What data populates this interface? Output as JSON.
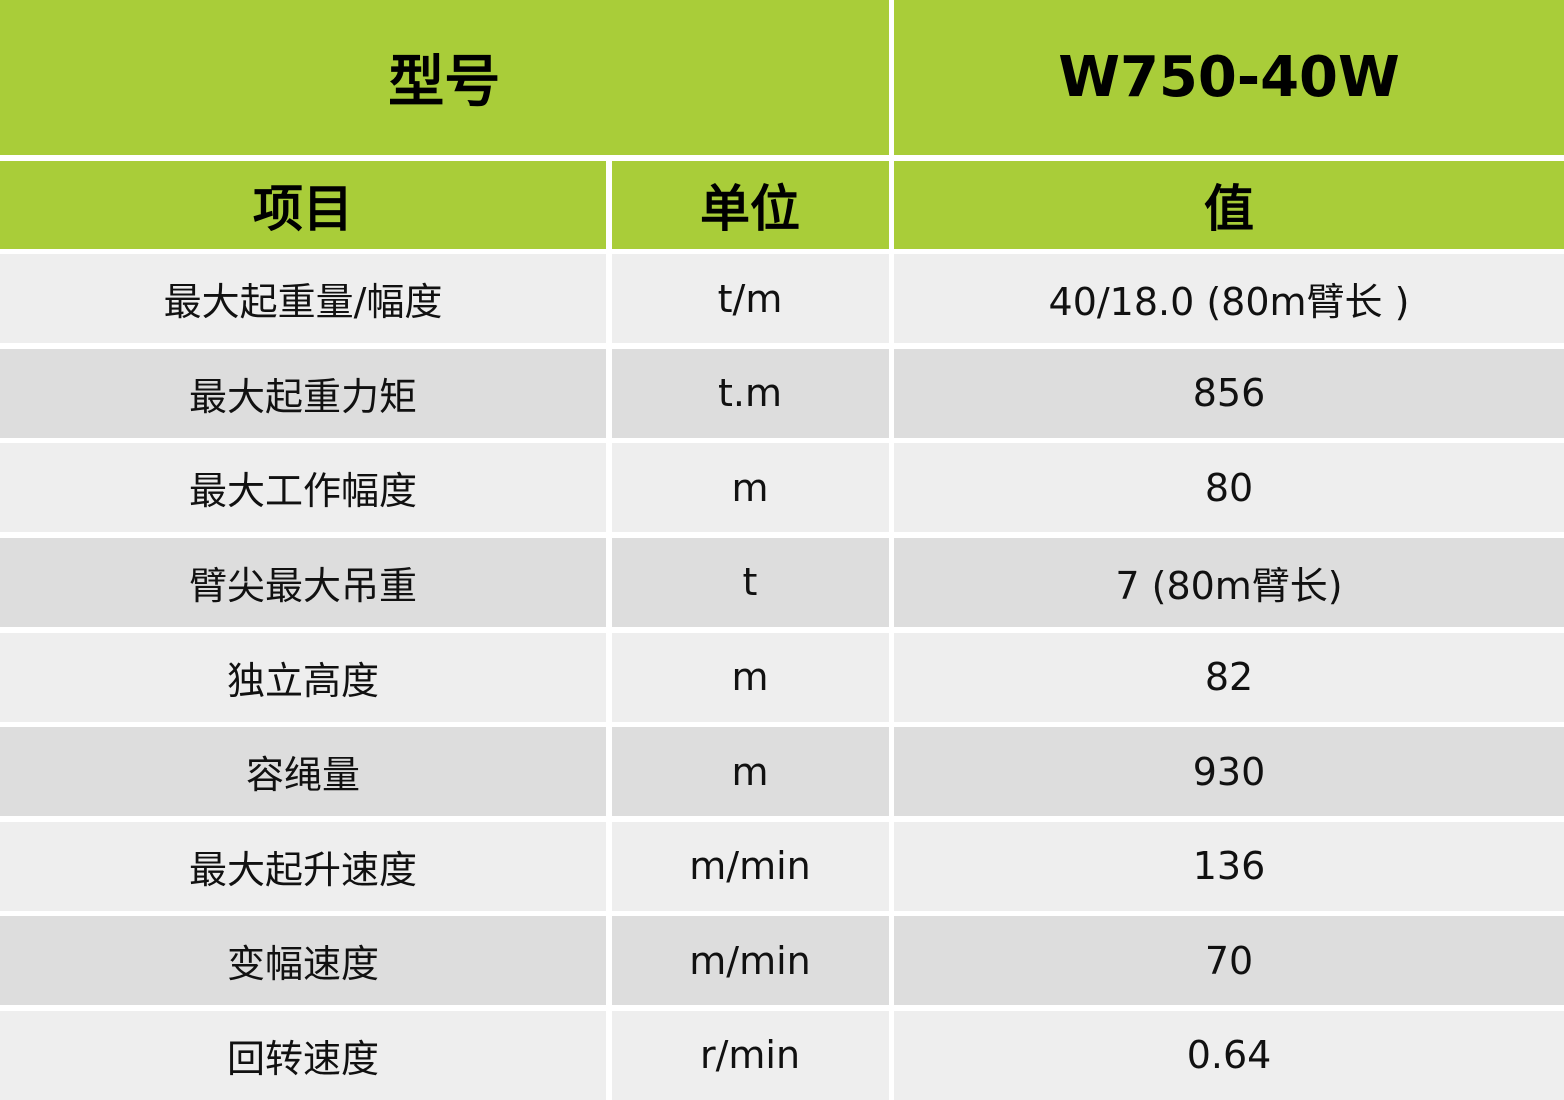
{
  "header": {
    "model_label": "型号",
    "model_value": "W750-40W"
  },
  "columns": {
    "item": "项目",
    "unit": "单位",
    "value": "值"
  },
  "colors": {
    "header_green": "#a9cd39",
    "row_light": "#eeeeee",
    "row_dark": "#dddddd"
  },
  "rows": [
    {
      "item": "最大起重量/幅度",
      "unit": "t/m",
      "value": "40/18.0 (80m臂长 )"
    },
    {
      "item": "最大起重力矩",
      "unit": "t.m",
      "value": "856"
    },
    {
      "item": "最大工作幅度",
      "unit": "m",
      "value": "80"
    },
    {
      "item": "臂尖最大吊重",
      "unit": "t",
      "value": "7 (80m臂长)"
    },
    {
      "item": "独立高度",
      "unit": "m",
      "value": "82"
    },
    {
      "item": "容绳量",
      "unit": "m",
      "value": "930"
    },
    {
      "item": "最大起升速度",
      "unit": "m/min",
      "value": "136"
    },
    {
      "item": "变幅速度",
      "unit": "m/min",
      "value": "70"
    },
    {
      "item": "回转速度",
      "unit": "r/min",
      "value": "0.64"
    }
  ]
}
